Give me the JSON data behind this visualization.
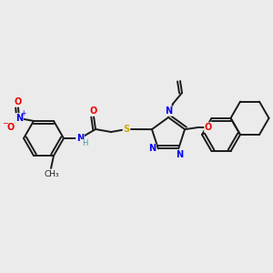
{
  "bg_color": "#ebebeb",
  "bond_color": "#1a1a1a",
  "atom_colors": {
    "N": "#0000ee",
    "O": "#ee0000",
    "S": "#ccaa00",
    "C": "#1a1a1a",
    "H": "#4a8fa0"
  },
  "figsize": [
    3.0,
    3.0
  ],
  "dpi": 100
}
